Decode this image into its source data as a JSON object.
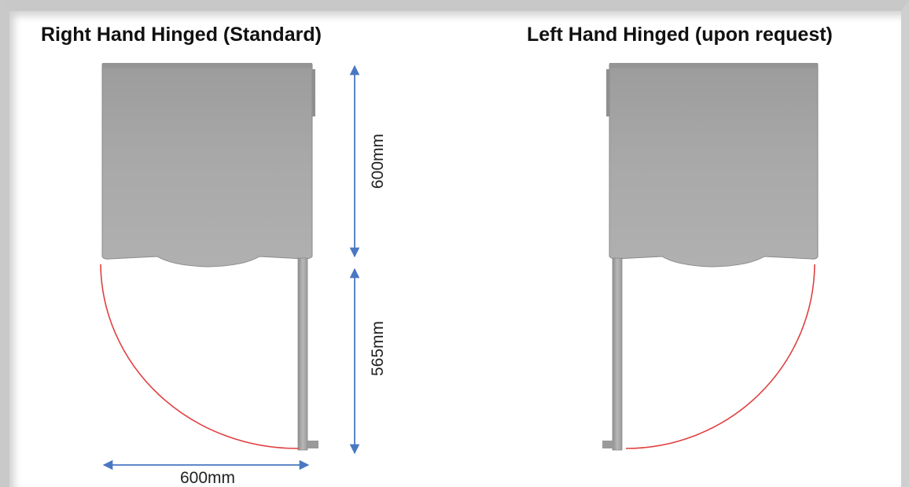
{
  "titles": {
    "right_hand": "Right Hand Hinged (Standard)",
    "left_hand": "Left Hand Hinged (upon request)"
  },
  "dimensions": {
    "cabinet_depth": "600mm",
    "door_swing_depth": "565mm",
    "width": "600mm"
  },
  "colors": {
    "cabinet": "#a8a8a8",
    "arrow": "#4a77c2",
    "swing_arc": "#e04040"
  }
}
